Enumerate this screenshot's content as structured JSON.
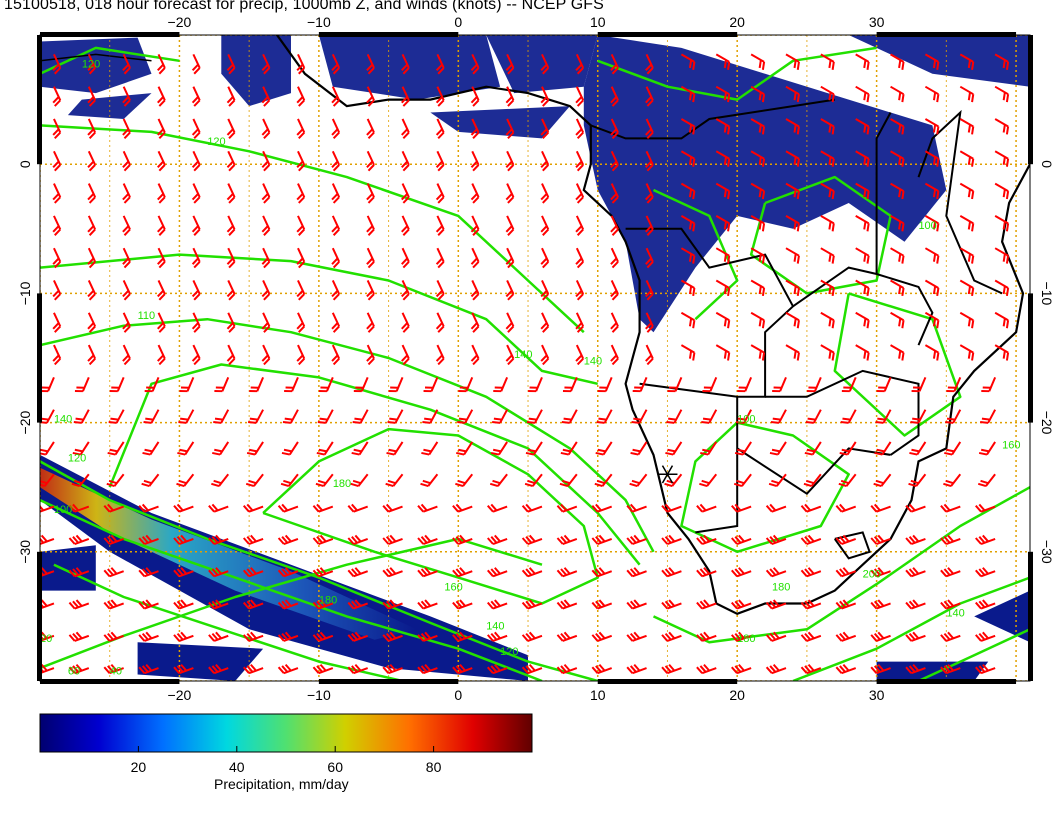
{
  "title": "15100518, 018 hour forecast for precip, 1000mb Z, and winds (knots) -- NCEP GFS",
  "map": {
    "lon_range": [
      -30,
      41
    ],
    "lat_range": [
      -40,
      10
    ],
    "lon_ticks": [
      -20,
      -10,
      0,
      10,
      20,
      30
    ],
    "lon_tick_labels": [
      "−20",
      "−10",
      "0",
      "10",
      "20",
      "30"
    ],
    "lat_ticks": [
      0,
      -10,
      -20,
      -30
    ],
    "lat_tick_labels": [
      "0",
      "−10",
      "−20",
      "−30"
    ],
    "grid": true,
    "colors": {
      "contour": "#22e000",
      "wind_barb": "#ff0000",
      "coast": "#000000",
      "grid": "#e0a000",
      "precip_low": "#0a1a8c",
      "precip_mid": "#3060c0"
    },
    "contour_labels": [
      {
        "text": "120",
        "lon": -27,
        "lat": 7.5
      },
      {
        "text": "120",
        "lon": -18,
        "lat": 1.5
      },
      {
        "text": "110",
        "lon": -23,
        "lat": -12
      },
      {
        "text": "140",
        "lon": 4,
        "lat": -15
      },
      {
        "text": "140",
        "lon": 9,
        "lat": -15.5
      },
      {
        "text": "140",
        "lon": -29,
        "lat": -20
      },
      {
        "text": "120",
        "lon": -28,
        "lat": -23
      },
      {
        "text": "180",
        "lon": -9,
        "lat": -25
      },
      {
        "text": "100",
        "lon": -29,
        "lat": -27
      },
      {
        "text": "180",
        "lon": -10,
        "lat": -34
      },
      {
        "text": "160",
        "lon": -1,
        "lat": -33
      },
      {
        "text": "140",
        "lon": 2,
        "lat": -36
      },
      {
        "text": "120",
        "lon": 3,
        "lat": -38
      },
      {
        "text": "100",
        "lon": 20,
        "lat": -20
      },
      {
        "text": "100",
        "lon": 33,
        "lat": -5
      },
      {
        "text": "160",
        "lon": 39,
        "lat": -22
      },
      {
        "text": "200",
        "lon": 29,
        "lat": -32
      },
      {
        "text": "180",
        "lon": 22.5,
        "lat": -33
      },
      {
        "text": "180",
        "lon": 20,
        "lat": -37
      },
      {
        "text": "140",
        "lon": 35,
        "lat": -35
      },
      {
        "text": "40",
        "lon": -25,
        "lat": -39.5
      },
      {
        "text": "60",
        "lon": -28,
        "lat": -39.5
      },
      {
        "text": "20",
        "lon": -30,
        "lat": -37
      }
    ],
    "marker": {
      "name": "asterisk",
      "lon": 15,
      "lat": -24
    }
  },
  "colorbar": {
    "label": "Precipitation, mm/day",
    "ticks": [
      20,
      40,
      60,
      80
    ],
    "min": 0,
    "max": 100
  }
}
